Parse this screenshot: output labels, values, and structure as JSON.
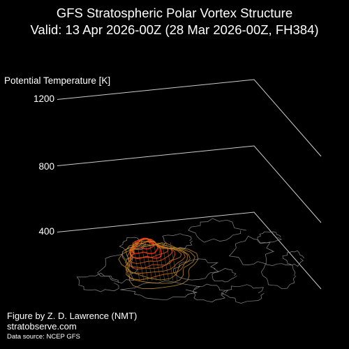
{
  "header": {
    "title": "GFS Stratospheric Polar Vortex Structure",
    "subtitle": "Valid: 13 Apr 2026-00Z  (28 Mar 2026-00Z, FH384)"
  },
  "footer": {
    "credit": "Figure by Z. D. Lawrence (NMT)",
    "site": "stratobserve.com",
    "source": "Data source: NCEP GFS"
  },
  "chart_data": {
    "type": "3d-isentropic-contour",
    "zlabel": "Potential Temperature [K]",
    "z_ticks": [
      {
        "value": 1200,
        "label": "1200"
      },
      {
        "value": 800,
        "label": "800"
      },
      {
        "value": 400,
        "label": "400"
      }
    ],
    "zlim": [
      400,
      1200
    ],
    "series": [
      {
        "theta": 400,
        "color": "#ff2a1a"
      },
      {
        "theta": 400,
        "color": "#e05a18"
      },
      {
        "theta": 400,
        "color": "#c8771c"
      },
      {
        "theta": 400,
        "color": "#b0862a"
      }
    ],
    "map_color": "#888888",
    "axis_color": "#cccccc"
  }
}
